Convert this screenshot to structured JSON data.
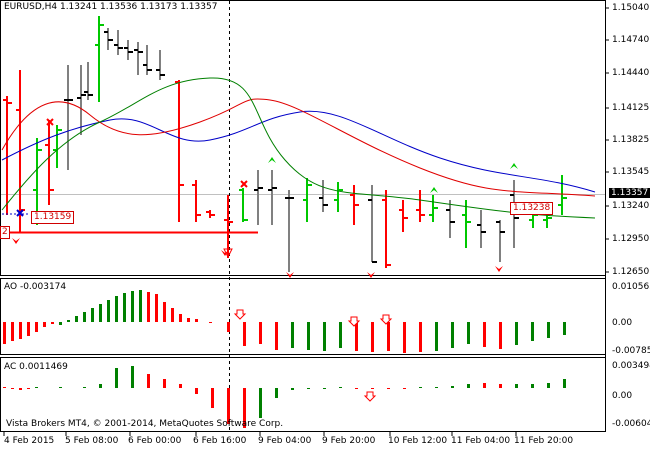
{
  "main_title": "EURUSD,H4  1.13241 1.13536 1.13173 1.13357",
  "ao_title": "AO -0.003174",
  "ac_title": "AC 0.0011469",
  "copyright": "Vista Brokers MT4, © 2001-2014, MetaQuotes Software Corp.",
  "price_ticks": [
    "1.15040",
    "1.14740",
    "1.14440",
    "1.14125",
    "1.13825",
    "1.13545",
    "1.13357",
    "1.13240",
    "1.12950",
    "1.12650"
  ],
  "ao_ticks": [
    "0.010563",
    "0.00",
    "-0.007852"
  ],
  "ac_ticks": [
    "0.003494",
    "0.00",
    "-0.006043"
  ],
  "time_ticks": [
    "4 Feb 2015",
    "5 Feb 08:00",
    "6 Feb 00:00",
    "6 Feb 16:00",
    "9 Feb 04:00",
    "9 Feb 20:00",
    "10 Feb 12:00",
    "11 Feb 04:00",
    "11 Feb 20:00"
  ],
  "left_price_label": "1.13159",
  "right_price_label": "1.13238",
  "left_marker_label": "2",
  "colors": {
    "up": "#00c800",
    "down": "#ff0000",
    "neutral": "#808080",
    "ma_blue": "#0000c8",
    "ma_red": "#e00000",
    "ma_green": "#008000",
    "ao_green": "#008000",
    "ao_red": "#ff0000"
  }
}
